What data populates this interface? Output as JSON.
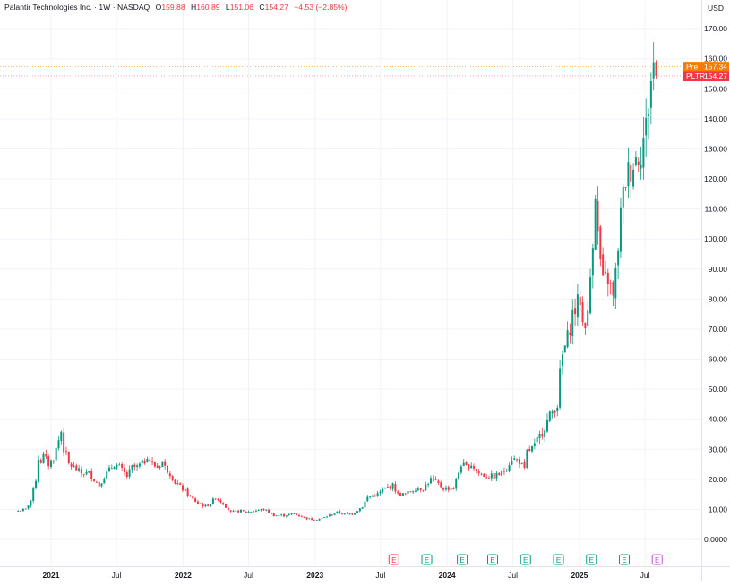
{
  "header": {
    "symbol_title": "Palantir Technologies Inc. · 1W · NASDAQ",
    "open_label": "O",
    "open_value": "159.88",
    "high_label": "H",
    "high_value": "160.89",
    "low_label": "L",
    "low_value": "151.06",
    "close_label": "C",
    "close_value": "154.27",
    "change_text": "−4.53 (−2.85%)"
  },
  "currency_label": "USD",
  "badges": {
    "pre": {
      "label": "Pre",
      "value": "157.34",
      "price": 157.34,
      "color": "#f57c00"
    },
    "last": {
      "label": "PLTR",
      "value": "154.27",
      "price": 154.27,
      "color": "#f23645"
    }
  },
  "colors": {
    "up": "#089981",
    "down": "#f23645",
    "grid": "#f0f3fa",
    "axis_text": "#131722"
  },
  "chart_data": {
    "type": "candlestick",
    "interval": "1W",
    "ylim": [
      0,
      170
    ],
    "y_ticks": [
      "0.0000",
      "10.00",
      "20.00",
      "30.00",
      "40.00",
      "50.00",
      "60.00",
      "70.00",
      "80.00",
      "90.00",
      "100.00",
      "110.00",
      "120.00",
      "130.00",
      "140.00",
      "150.00",
      "160.00",
      "170.00"
    ],
    "x_ticks": [
      {
        "label": "2021",
        "bold": true,
        "date": "2021-01-01"
      },
      {
        "label": "Jul",
        "bold": false,
        "date": "2021-07-01"
      },
      {
        "label": "2022",
        "bold": true,
        "date": "2022-01-01"
      },
      {
        "label": "Jul",
        "bold": false,
        "date": "2022-07-01"
      },
      {
        "label": "2023",
        "bold": true,
        "date": "2023-01-01"
      },
      {
        "label": "Jul",
        "bold": false,
        "date": "2023-07-01"
      },
      {
        "label": "2024",
        "bold": true,
        "date": "2024-01-01"
      },
      {
        "label": "Jul",
        "bold": false,
        "date": "2024-07-01"
      },
      {
        "label": "2025",
        "bold": true,
        "date": "2025-01-01"
      },
      {
        "label": "Jul",
        "bold": false,
        "date": "2025-07-01"
      }
    ],
    "price_path": [
      [
        "2020-10-02",
        9.5
      ],
      [
        "2020-10-23",
        10
      ],
      [
        "2020-11-06",
        13
      ],
      [
        "2020-11-20",
        20
      ],
      [
        "2020-11-27",
        27
      ],
      [
        "2020-12-04",
        26
      ],
      [
        "2020-12-11",
        28
      ],
      [
        "2020-12-25",
        25
      ],
      [
        "2021-01-08",
        27
      ],
      [
        "2021-01-22",
        33
      ],
      [
        "2021-01-29",
        36
      ],
      [
        "2021-02-05",
        30
      ],
      [
        "2021-02-12",
        28
      ],
      [
        "2021-02-19",
        25
      ],
      [
        "2021-03-05",
        24
      ],
      [
        "2021-03-26",
        22
      ],
      [
        "2021-04-16",
        22
      ],
      [
        "2021-05-14",
        18
      ],
      [
        "2021-05-28",
        21
      ],
      [
        "2021-06-11",
        23
      ],
      [
        "2021-06-25",
        25
      ],
      [
        "2021-07-09",
        24
      ],
      [
        "2021-07-30",
        21
      ],
      [
        "2021-08-13",
        24
      ],
      [
        "2021-08-27",
        24
      ],
      [
        "2021-09-17",
        26
      ],
      [
        "2021-09-24",
        28
      ],
      [
        "2021-10-08",
        25
      ],
      [
        "2021-10-22",
        24
      ],
      [
        "2021-11-05",
        26
      ],
      [
        "2021-11-12",
        24
      ],
      [
        "2021-11-26",
        22
      ],
      [
        "2021-12-10",
        19
      ],
      [
        "2022-01-07",
        16
      ],
      [
        "2022-01-21",
        14
      ],
      [
        "2022-02-11",
        12
      ],
      [
        "2022-03-04",
        11
      ],
      [
        "2022-03-18",
        12
      ],
      [
        "2022-04-01",
        14
      ],
      [
        "2022-04-22",
        12
      ],
      [
        "2022-05-13",
        9
      ],
      [
        "2022-06-10",
        9.5
      ],
      [
        "2022-06-24",
        9
      ],
      [
        "2022-07-15",
        9.5
      ],
      [
        "2022-08-12",
        10
      ],
      [
        "2022-09-09",
        8
      ],
      [
        "2022-10-07",
        8
      ],
      [
        "2022-11-04",
        8.5
      ],
      [
        "2022-12-09",
        7
      ],
      [
        "2022-12-30",
        6.5
      ],
      [
        "2023-01-20",
        7
      ],
      [
        "2023-02-10",
        8
      ],
      [
        "2023-03-03",
        9
      ],
      [
        "2023-03-24",
        8.5
      ],
      [
        "2023-04-14",
        8.5
      ],
      [
        "2023-05-12",
        11
      ],
      [
        "2023-05-26",
        14
      ],
      [
        "2023-06-23",
        15
      ],
      [
        "2023-07-14",
        17
      ],
      [
        "2023-08-04",
        18
      ],
      [
        "2023-08-18",
        15
      ],
      [
        "2023-09-08",
        15
      ],
      [
        "2023-10-06",
        17
      ],
      [
        "2023-10-27",
        17
      ],
      [
        "2023-11-17",
        20
      ],
      [
        "2023-12-01",
        19
      ],
      [
        "2023-12-22",
        17
      ],
      [
        "2024-01-19",
        17
      ],
      [
        "2024-02-09",
        25
      ],
      [
        "2024-02-23",
        24
      ],
      [
        "2024-03-08",
        25
      ],
      [
        "2024-03-29",
        22
      ],
      [
        "2024-04-19",
        21
      ],
      [
        "2024-05-10",
        21
      ],
      [
        "2024-05-31",
        22
      ],
      [
        "2024-06-14",
        24
      ],
      [
        "2024-06-28",
        27
      ],
      [
        "2024-07-19",
        26
      ],
      [
        "2024-08-02",
        23
      ],
      [
        "2024-08-09",
        29
      ],
      [
        "2024-08-30",
        31
      ],
      [
        "2024-09-20",
        36
      ],
      [
        "2024-10-11",
        41
      ],
      [
        "2024-10-25",
        44
      ],
      [
        "2024-11-01",
        45
      ],
      [
        "2024-11-08",
        55
      ],
      [
        "2024-11-15",
        61
      ],
      [
        "2024-11-29",
        67
      ],
      [
        "2024-12-13",
        75
      ],
      [
        "2025-01-03",
        80
      ],
      [
        "2025-01-10",
        72
      ],
      [
        "2025-01-24",
        74
      ],
      [
        "2025-02-07",
        101
      ],
      [
        "2025-02-14",
        117
      ],
      [
        "2025-02-21",
        101
      ],
      [
        "2025-03-07",
        85
      ],
      [
        "2025-03-21",
        87
      ],
      [
        "2025-04-04",
        80
      ],
      [
        "2025-04-11",
        88
      ],
      [
        "2025-04-25",
        108
      ],
      [
        "2025-05-09",
        120
      ],
      [
        "2025-05-23",
        124
      ],
      [
        "2025-06-06",
        127
      ],
      [
        "2025-06-20",
        130
      ],
      [
        "2025-07-04",
        137
      ],
      [
        "2025-07-18",
        153
      ],
      [
        "2025-07-25",
        158
      ],
      [
        "2025-08-01",
        154.27
      ]
    ],
    "events": [
      {
        "label": "E",
        "date": "2023-08-07",
        "color": "#f23645"
      },
      {
        "label": "E",
        "date": "2023-11-06",
        "color": "#089981"
      },
      {
        "label": "E",
        "date": "2024-02-12",
        "color": "#089981"
      },
      {
        "label": "E",
        "date": "2024-05-06",
        "color": "#089981"
      },
      {
        "label": "E",
        "date": "2024-08-05",
        "color": "#089981"
      },
      {
        "label": "E",
        "date": "2024-11-04",
        "color": "#089981"
      },
      {
        "label": "E",
        "date": "2025-02-03",
        "color": "#089981"
      },
      {
        "label": "E",
        "date": "2025-05-05",
        "color": "#089981"
      },
      {
        "label": "E",
        "date": "2025-08-04",
        "color": "#c54fd6"
      }
    ]
  }
}
